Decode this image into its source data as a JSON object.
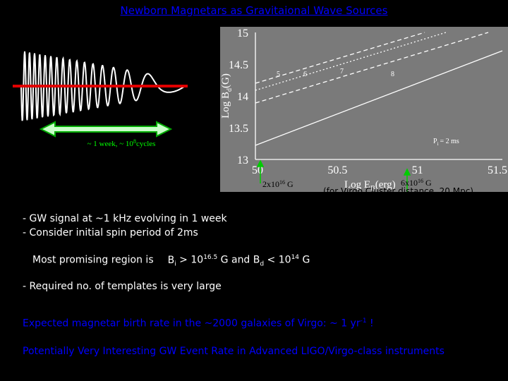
{
  "title": "Newborn Magnetars as Gravitaional Wave Sources",
  "illustration": {
    "label": "~ 1 week, ~ 10",
    "label_sup": "8",
    "label_tail": "cycles"
  },
  "figure": {
    "y_axis_label": "Log B",
    "y_axis_sub": "d",
    "y_axis_unit": "(G)",
    "y_ticks": [
      "15",
      "14.5",
      "14",
      "13.5",
      "13"
    ],
    "x_ticks": [
      "50",
      "50.5",
      "51",
      "51.5"
    ],
    "x_axis_label": "Log E",
    "x_axis_sub": "B",
    "x_axis_unit": "(erg)",
    "curve_labels": [
      "5",
      "6",
      "7",
      "8"
    ],
    "period_label": "P",
    "period_sub": "i",
    "period_value": "= 2 ms"
  },
  "annotations": {
    "left": {
      "base": "2x10",
      "sup": "16",
      "unit": " G"
    },
    "right": {
      "base": "6x10",
      "sup": "16",
      "unit": " G"
    },
    "distance": "(for Virgo Cluster distance, 20 Mpc)"
  },
  "bullets": {
    "line1": "- GW signal at ~1 kHz evolving in 1 week",
    "line2": "- Consider initial spin period of  2ms",
    "region": {
      "lead": "Most promising region is",
      "bi": "B",
      "bi_sub": "i",
      "bi_rel": " > 10",
      "bi_sup": "16.5",
      "mid": " G and B",
      "bd_sub": "d",
      "bd_rel": " < 10",
      "bd_sup": "14",
      "tail": " G"
    },
    "line4": "- Required no. of templates is  very large"
  },
  "rate": {
    "text": "Expected magnetar birth rate in the ~2000 galaxies of Virgo: ~ 1 yr",
    "sup": "-1",
    "tail": " !"
  },
  "conclusion": "Potentially Very Interesting GW Event Rate in Advanced LIGO/Virgo-class instruments"
}
